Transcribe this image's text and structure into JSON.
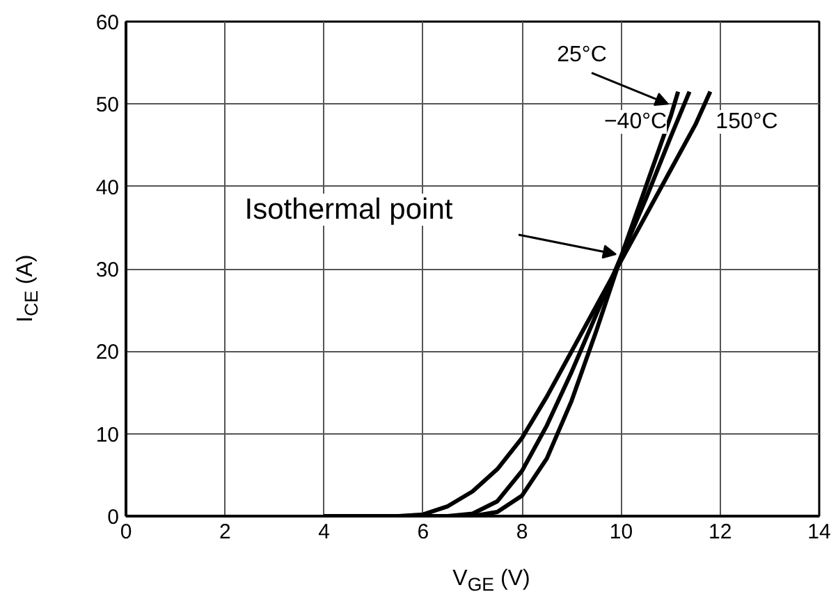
{
  "chart_data": {
    "type": "line",
    "xlabel": "V$_{GE}$ (V)",
    "ylabel": "I$_{CE}$ (A)",
    "xlim": [
      0,
      14
    ],
    "xticks": [
      0,
      2,
      4,
      6,
      8,
      10,
      12,
      14
    ],
    "ylim": [
      0,
      60
    ],
    "yticks": [
      0,
      10,
      20,
      30,
      40,
      50,
      60
    ],
    "grid": true,
    "marker": "none",
    "line_style": "solid",
    "series": [
      {
        "color": "#000000",
        "x": [
          4,
          5.5,
          6,
          6.5,
          7,
          7.5,
          8,
          8.5,
          9,
          9.5,
          10,
          10.5,
          11,
          11.5,
          11.8
        ],
        "values": [
          0,
          0,
          0.2,
          1.2,
          3,
          5.7,
          9.5,
          14.5,
          20,
          25.5,
          31,
          36.5,
          42,
          47.5,
          51.5
        ]
      },
      {
        "color": "#000000",
        "x": [
          4,
          6.5,
          7,
          7.5,
          8,
          8.5,
          9,
          9.5,
          10,
          10.5,
          11,
          11.38
        ],
        "values": [
          0,
          0,
          0.3,
          1.8,
          5.5,
          11,
          17.5,
          24.5,
          31.5,
          38.5,
          46,
          51.5
        ]
      },
      {
        "color": "#000000",
        "x": [
          4,
          7,
          7.5,
          8,
          8.5,
          9,
          9.5,
          10,
          10.5,
          11,
          11.15
        ],
        "values": [
          0,
          0,
          0.5,
          2.5,
          7,
          14,
          22.5,
          31.5,
          40,
          48.5,
          51.5
        ]
      }
    ],
    "annotations": [
      "Isothermal point",
      {
        "text": "25°C",
        "x": 10.95,
        "y": 50
      },
      "−40°C",
      "150°C"
    ]
  }
}
